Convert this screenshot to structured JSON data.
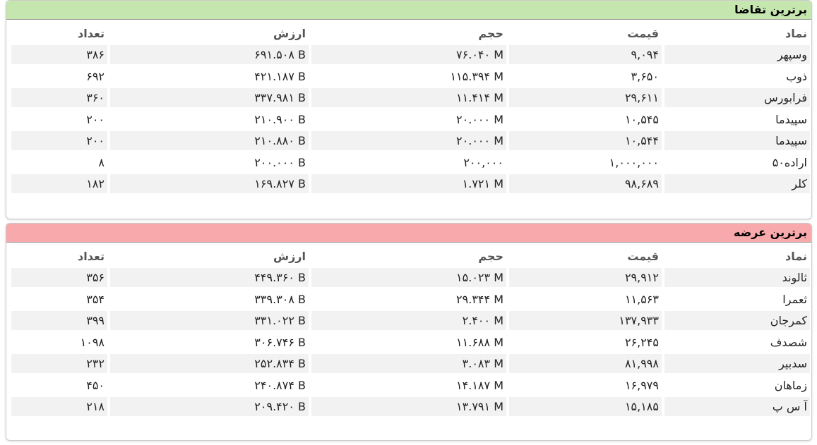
{
  "panels": [
    {
      "title": "برترین تقاضا",
      "headers": [
        "نماد",
        "قیمت",
        "حجم",
        "ارزش",
        "تعداد"
      ],
      "rows": [
        [
          "وسپهر",
          "۹,۰۹۴",
          "۷۶.۰۴۰ M",
          "۶۹۱.۵۰۸ B",
          "۳۸۶"
        ],
        [
          "ذوب",
          "۳,۶۵۰",
          "۱۱۵.۳۹۴ M",
          "۴۲۱.۱۸۷ B",
          "۶۹۲"
        ],
        [
          "فرابورس",
          "۲۹,۶۱۱",
          "۱۱.۴۱۴ M",
          "۳۳۷.۹۸۱ B",
          "۳۶۰"
        ],
        [
          "سپیدما",
          "۱۰,۵۴۵",
          "۲۰.۰۰۰ M",
          "۲۱۰.۹۰۰ B",
          "۲۰۰"
        ],
        [
          "سپیدما",
          "۱۰,۵۴۴",
          "۲۰.۰۰۰ M",
          "۲۱۰.۸۸۰ B",
          "۲۰۰"
        ],
        [
          "اراده۵۰",
          "۱,۰۰۰,۰۰۰",
          "۲۰۰,۰۰۰",
          "۲۰۰.۰۰۰ B",
          "۸"
        ],
        [
          "کلر",
          "۹۸,۶۸۹",
          "۱.۷۲۱ M",
          "۱۶۹.۸۲۷ B",
          "۱۸۲"
        ]
      ]
    },
    {
      "title": "برترین عرضه",
      "headers": [
        "نماد",
        "قیمت",
        "حجم",
        "ارزش",
        "تعداد"
      ],
      "rows": [
        [
          "ثالوند",
          "۲۹,۹۱۲",
          "۱۵.۰۲۳ M",
          "۴۴۹.۳۶۰ B",
          "۳۵۶"
        ],
        [
          "ثعمرا",
          "۱۱,۵۶۳",
          "۲۹.۳۴۴ M",
          "۳۳۹.۳۰۸ B",
          "۳۵۴"
        ],
        [
          "کمرجان",
          "۱۳۷,۹۳۳",
          "۲.۴۰۰ M",
          "۳۳۱.۰۲۲ B",
          "۳۹۹"
        ],
        [
          "شصدف",
          "۲۶,۲۴۵",
          "۱۱.۶۸۸ M",
          "۳۰۶.۷۴۶ B",
          "۱۰۹۸"
        ],
        [
          "سدبیر",
          "۸۱,۹۹۸",
          "۳.۰۸۳ M",
          "۲۵۲.۸۳۴ B",
          "۲۳۲"
        ],
        [
          "زماهان",
          "۱۶,۹۷۹",
          "۱۴.۱۸۷ M",
          "۲۴۰.۸۷۴ B",
          "۴۵۰"
        ],
        [
          "آ س پ",
          "۱۵,۱۸۵",
          "۱۳.۷۹۱ M",
          "۲۰۹.۴۲۰ B",
          "۲۱۸"
        ]
      ]
    }
  ]
}
